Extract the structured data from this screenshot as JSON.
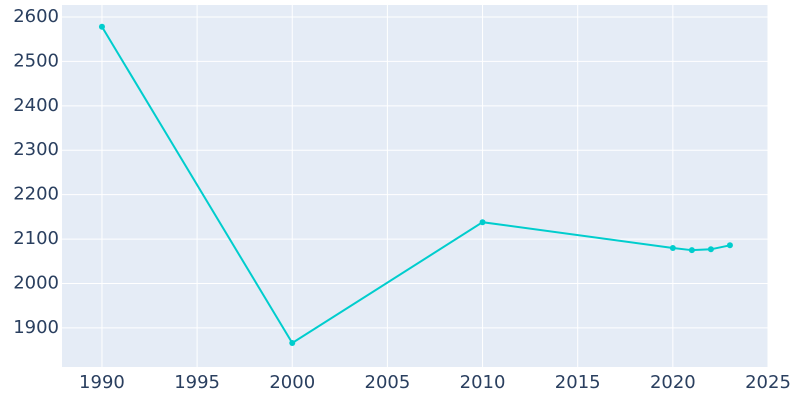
{
  "chart_data": {
    "type": "line",
    "x": [
      1990,
      2000,
      2010,
      2020,
      2021,
      2022,
      2023
    ],
    "series": [
      {
        "color": "#00cdcd",
        "values": [
          2578,
          1866,
          2138,
          2080,
          2075,
          2077,
          2086
        ]
      }
    ],
    "xlim": [
      1987.9,
      2025
    ],
    "xticks": [
      1990,
      1995,
      2000,
      2005,
      2010,
      2015,
      2020,
      2025
    ],
    "ylim": [
      1812,
      2627
    ],
    "yticks": [
      1900,
      2000,
      2100,
      2200,
      2300,
      2400,
      2500,
      2600
    ],
    "grid": true
  }
}
